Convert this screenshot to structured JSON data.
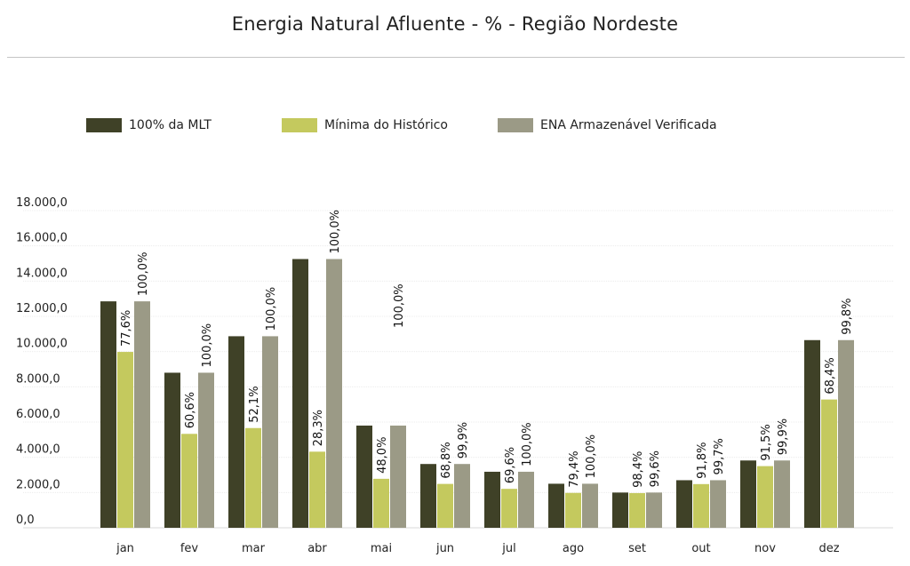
{
  "title": "Energia Natural Afluente - % - Região Nordeste",
  "legend": [
    {
      "label": "100% da MLT",
      "color": "#3f4127"
    },
    {
      "label": "Mínima do Histórico",
      "color": "#c4c95e"
    },
    {
      "label": "ENA Armazenável Verificada",
      "color": "#9b9a86"
    }
  ],
  "chart_data": {
    "type": "bar",
    "title": "Energia Natural Afluente - % - Região Nordeste",
    "xlabel": "",
    "ylabel": "",
    "ylim": [
      0,
      18000
    ],
    "yticks": [
      0,
      2000,
      4000,
      6000,
      8000,
      10000,
      12000,
      14000,
      16000,
      18000
    ],
    "ytick_labels": [
      "0,0",
      "2.000,0",
      "4.000,0",
      "6.000,0",
      "8.000,0",
      "10.000,0",
      "12.000,0",
      "14.000,0",
      "16.000,0",
      "18.000,0"
    ],
    "grid": true,
    "legend_position": "top-left",
    "categories": [
      "jan",
      "fev",
      "mar",
      "abr",
      "mai",
      "jun",
      "jul",
      "ago",
      "set",
      "out",
      "nov",
      "dez"
    ],
    "series": [
      {
        "name": "100% da MLT",
        "color": "#3f4127",
        "values": [
          12850,
          8800,
          10870,
          15250,
          5800,
          3620,
          3180,
          2500,
          2000,
          2700,
          3820,
          10650
        ],
        "labels": [
          "",
          "",
          "",
          "",
          "",
          "",
          "",
          "",
          "",
          "",
          "",
          ""
        ]
      },
      {
        "name": "Mínima do Histórico",
        "color": "#c4c95e",
        "values": [
          9980,
          5330,
          5660,
          4320,
          2780,
          2490,
          2210,
          1980,
          1970,
          2480,
          3500,
          7280
        ],
        "labels": [
          "77,6%",
          "60,6%",
          "52,1%",
          "28,3%",
          "48,0%",
          "68,8%",
          "69,6%",
          "79,4%",
          "98,4%",
          "91,8%",
          "91,5%",
          "68,4%"
        ]
      },
      {
        "name": "ENA Armazenável Verificada",
        "color": "#9b9a86",
        "values": [
          12850,
          8800,
          10870,
          15250,
          5800,
          3620,
          3180,
          2500,
          2000,
          2700,
          3820,
          10650
        ],
        "labels": [
          "100,0%",
          "100,0%",
          "100,0%",
          "100,0%",
          "100,0%",
          "99,9%",
          "100,0%",
          "100,0%",
          "99,6%",
          "99,7%",
          "99,9%",
          "99,8%"
        ]
      }
    ]
  }
}
